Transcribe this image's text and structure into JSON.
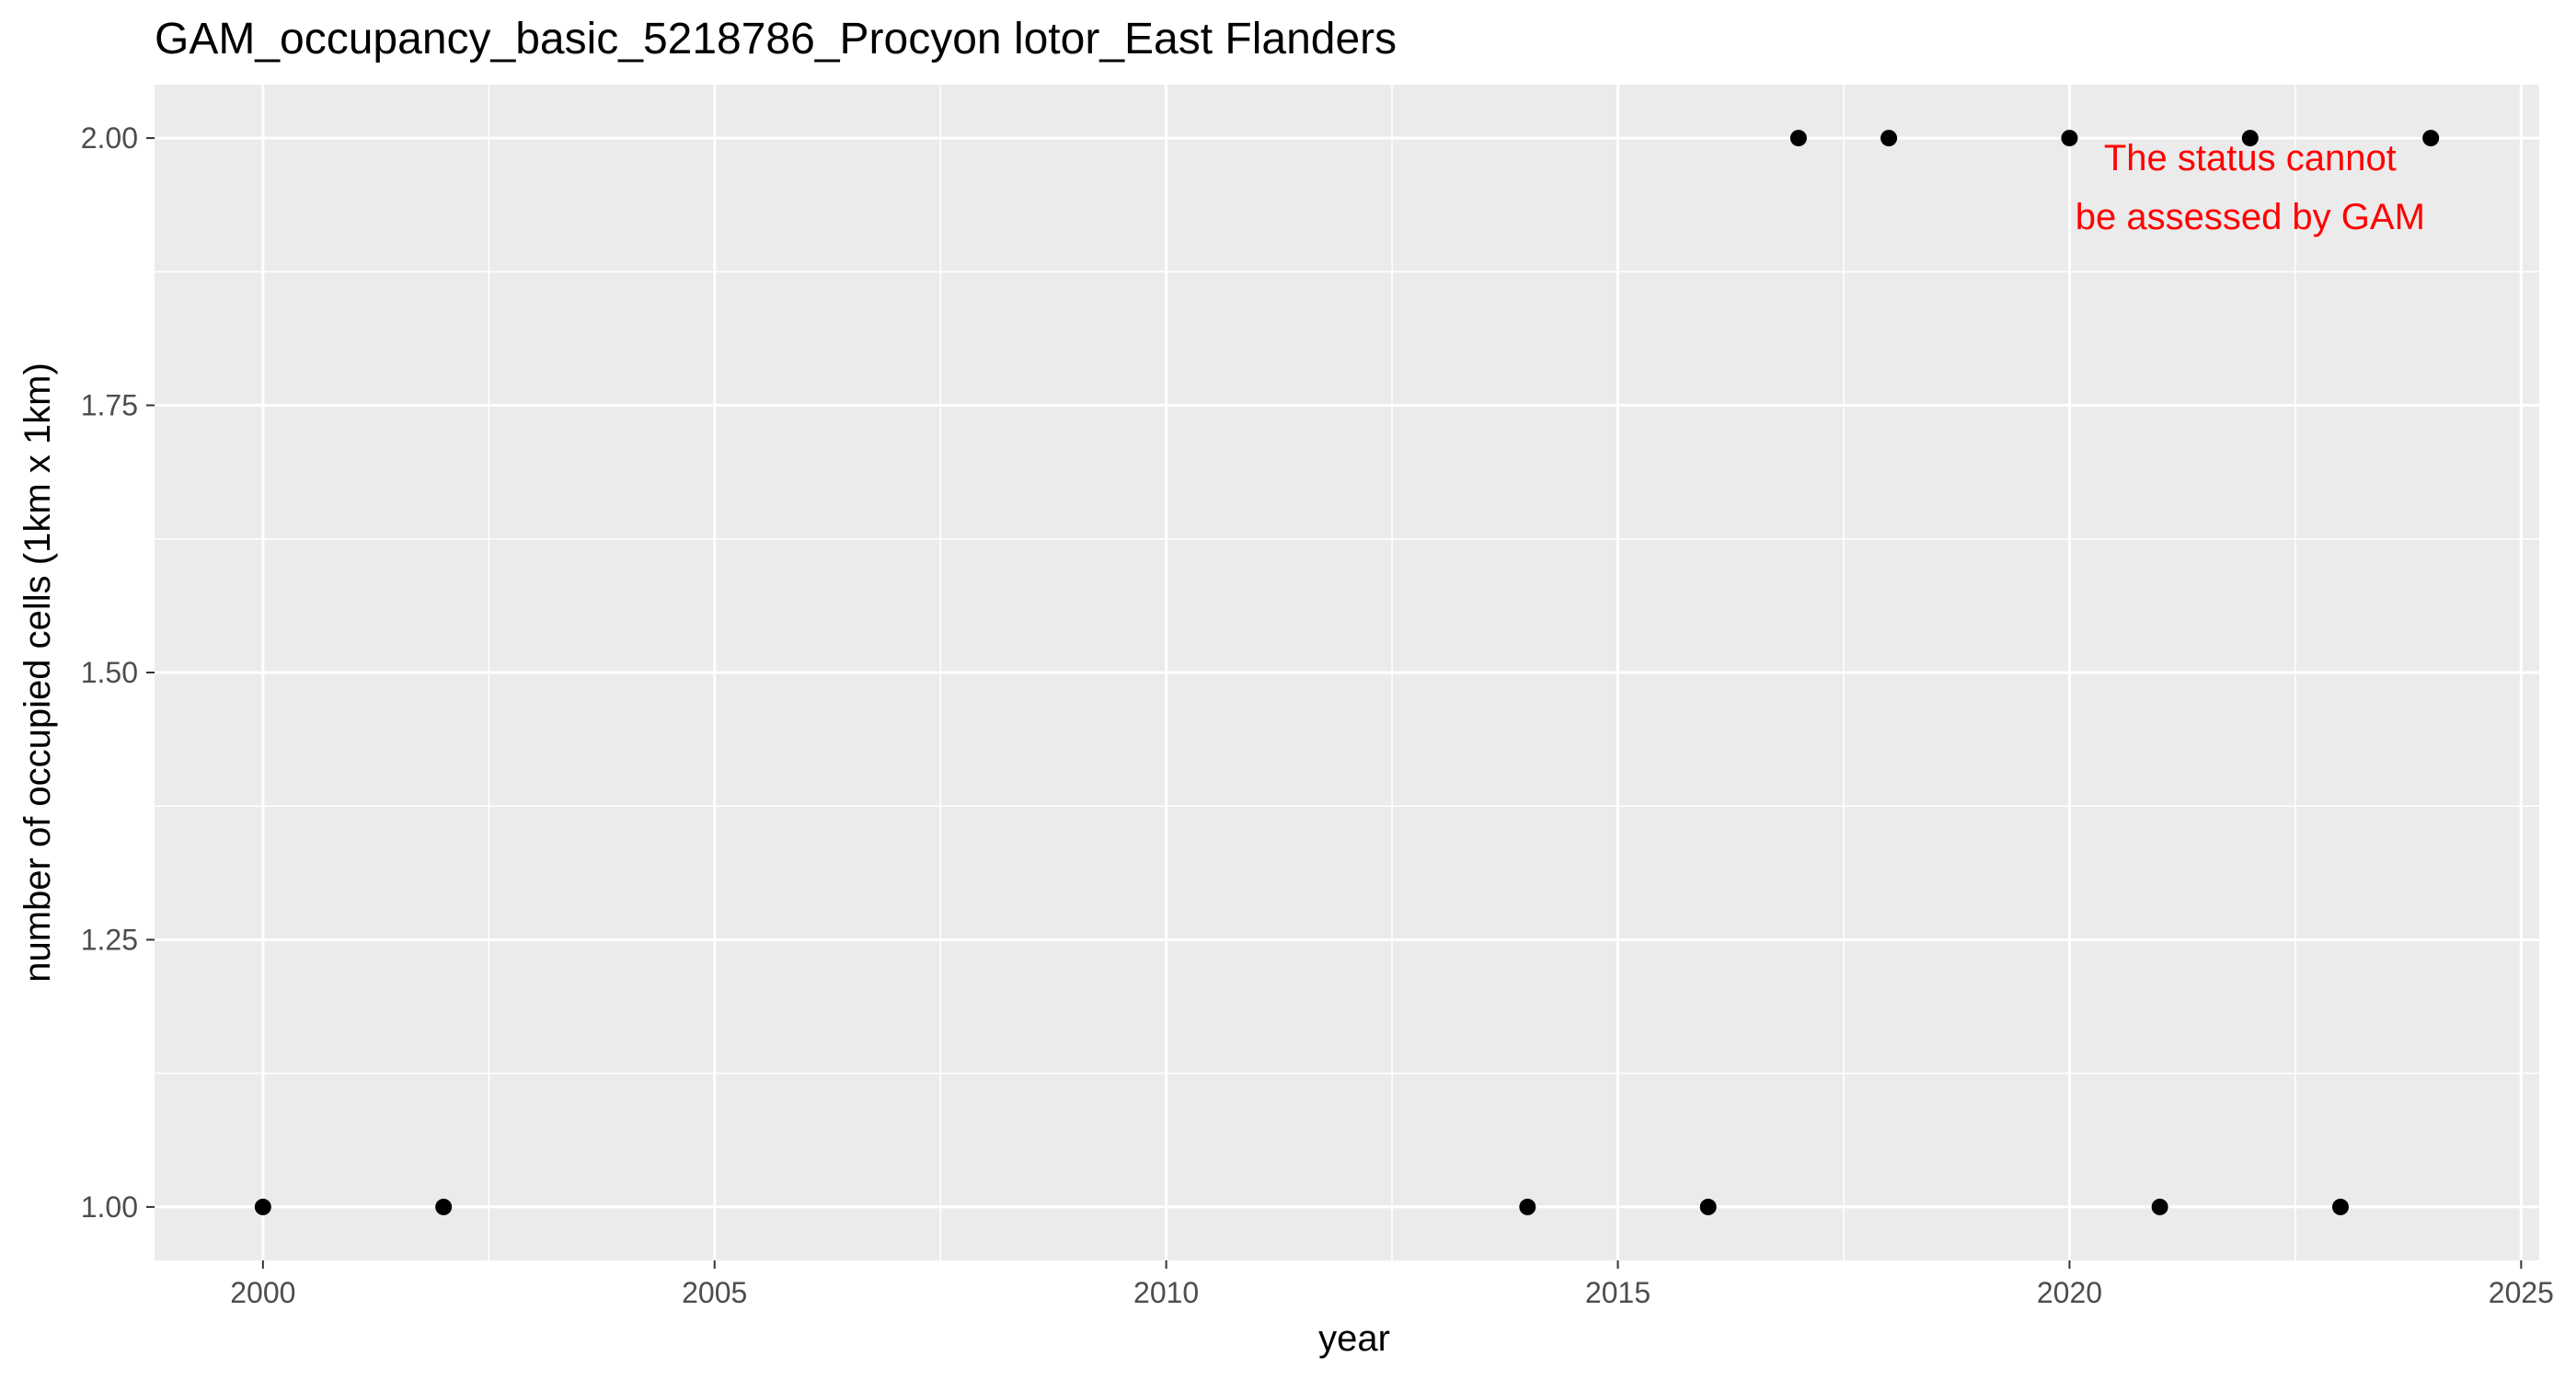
{
  "chart_data": {
    "type": "scatter",
    "title": "GAM_occupancy_basic_5218786_Procyon lotor_East Flanders",
    "xlabel": "year",
    "ylabel": "number of occupied cells (1km x 1km)",
    "xlim": [
      1998.8,
      2025.2
    ],
    "ylim": [
      0.95,
      2.05
    ],
    "x_ticks": [
      2000,
      2005,
      2010,
      2015,
      2020,
      2025
    ],
    "x_tick_labels": [
      "2000",
      "2005",
      "2010",
      "2015",
      "2020",
      "2025"
    ],
    "y_ticks": [
      1.0,
      1.25,
      1.5,
      1.75,
      2.0
    ],
    "y_tick_labels": [
      "1.00",
      "1.25",
      "1.50",
      "1.75",
      "2.00"
    ],
    "grid": true,
    "background": "#ebebeb",
    "point_color": "#000000",
    "points": [
      {
        "x": 2000,
        "y": 1
      },
      {
        "x": 2002,
        "y": 1
      },
      {
        "x": 2014,
        "y": 1
      },
      {
        "x": 2016,
        "y": 1
      },
      {
        "x": 2017,
        "y": 2
      },
      {
        "x": 2018,
        "y": 2
      },
      {
        "x": 2020,
        "y": 2
      },
      {
        "x": 2021,
        "y": 1
      },
      {
        "x": 2022,
        "y": 2
      },
      {
        "x": 2023,
        "y": 1
      },
      {
        "x": 2024,
        "y": 2
      }
    ],
    "annotation": {
      "lines": [
        "The status cannot",
        "be assessed by GAM"
      ],
      "color": "#ff0000",
      "x": 2022,
      "y": 1.97
    }
  }
}
